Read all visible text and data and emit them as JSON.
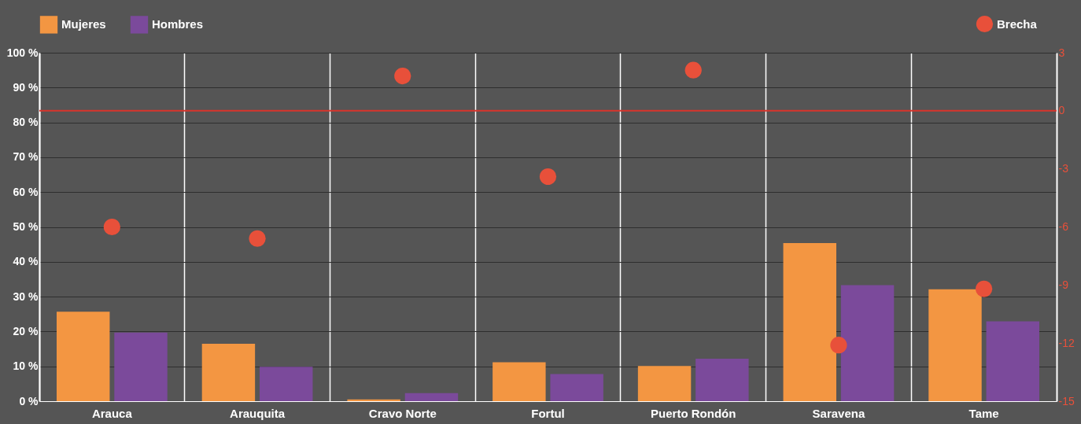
{
  "chart_data": {
    "type": "bar",
    "categories": [
      "Arauca",
      "Arauquita",
      "Cravo Norte",
      "Fortul",
      "Puerto Rondón",
      "Saravena",
      "Tame"
    ],
    "series": [
      {
        "name": "Mujeres",
        "color": "#f39642",
        "values": [
          25.7,
          16.5,
          0.5,
          11.2,
          10.1,
          45.4,
          32.1
        ]
      },
      {
        "name": "Hombres",
        "color": "#7b4a9b",
        "values": [
          19.7,
          9.9,
          2.3,
          7.8,
          12.2,
          33.3,
          22.9
        ]
      },
      {
        "name": "Brecha",
        "type": "scatter",
        "axis": "y2",
        "color": "#e8503a",
        "values": [
          -6.0,
          -6.6,
          1.8,
          -3.4,
          2.1,
          -12.1,
          -9.2
        ]
      }
    ],
    "ylim": [
      0,
      100
    ],
    "yticks": [
      {
        "value": 0,
        "label": "0 %"
      },
      {
        "value": 10,
        "label": "10 %"
      },
      {
        "value": 20,
        "label": "20 %"
      },
      {
        "value": 30,
        "label": "30 %"
      },
      {
        "value": 40,
        "label": "40 %"
      },
      {
        "value": 50,
        "label": "50 %"
      },
      {
        "value": 60,
        "label": "60 %"
      },
      {
        "value": 70,
        "label": "70 %"
      },
      {
        "value": 80,
        "label": "80 %"
      },
      {
        "value": 90,
        "label": "90 %"
      },
      {
        "value": 100,
        "label": "100 %"
      }
    ],
    "y2lim": [
      -15,
      3
    ],
    "y2ticks": [
      3,
      0,
      -3,
      -6,
      -9,
      -12,
      -15
    ],
    "ref_lines": [
      {
        "axis": "y2",
        "value": 0,
        "color": "#d9342b"
      }
    ],
    "grid": true,
    "legend": "top",
    "marker": "circle"
  }
}
